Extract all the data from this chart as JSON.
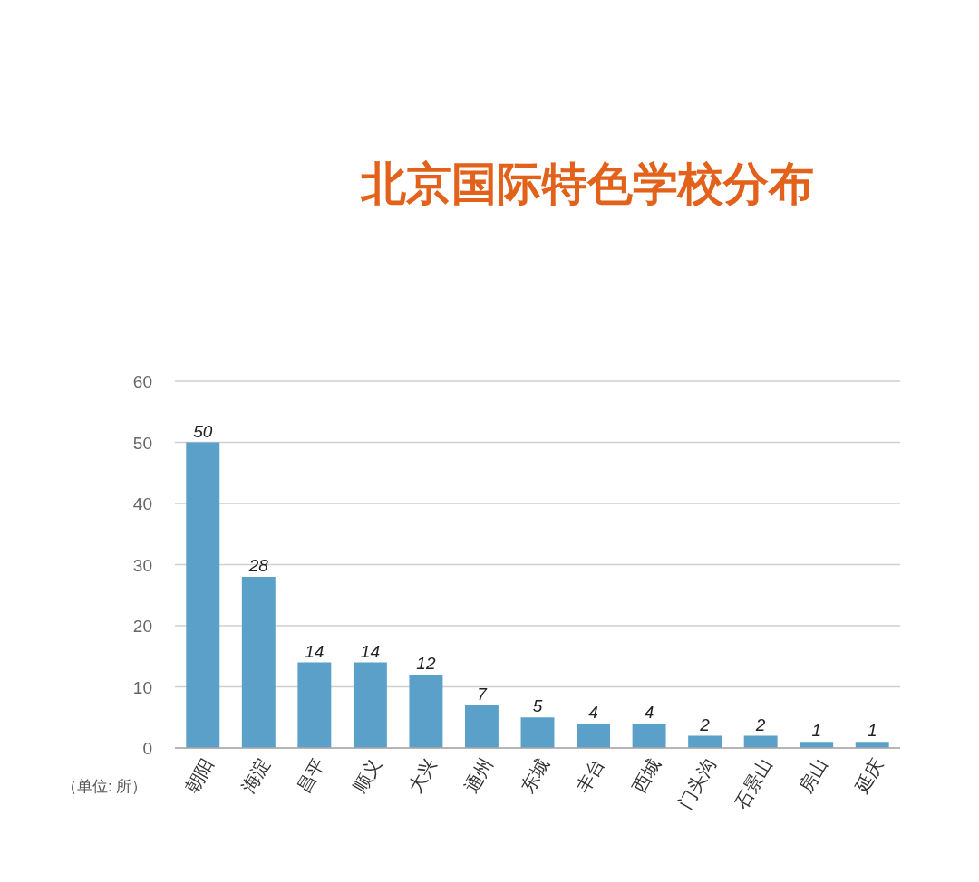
{
  "chart_data": {
    "type": "bar",
    "title": "北京国际特色学校分布",
    "categories": [
      "朝阳",
      "海淀",
      "昌平",
      "顺义",
      "大兴",
      "通州",
      "东城",
      "丰台",
      "西城",
      "门头沟",
      "石景山",
      "房山",
      "延庆"
    ],
    "values": [
      50,
      28,
      14,
      14,
      12,
      7,
      5,
      4,
      4,
      2,
      2,
      1,
      1
    ],
    "color": "#5aa0c8",
    "ylim": [
      0,
      60
    ],
    "yticks": [
      0,
      10,
      20,
      30,
      40,
      50,
      60
    ],
    "grid": "y",
    "data_labels": true,
    "annotations": [
      "（单位: 所）"
    ]
  }
}
